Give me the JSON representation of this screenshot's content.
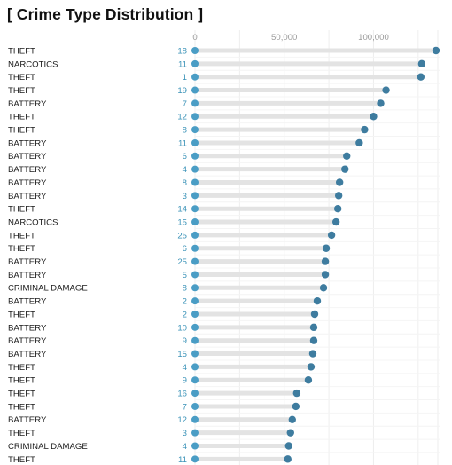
{
  "title": "[ Crime Type Distribution ]",
  "chart_data": {
    "type": "lollipop",
    "title": "[ Crime Type Distribution ]",
    "x_ticks": [
      0,
      50000,
      100000
    ],
    "x_tick_labels": [
      "0",
      "50,000",
      "100,000"
    ],
    "xlim": [
      0,
      137000
    ],
    "grid": true,
    "colors": {
      "stem": "#e3e3e3",
      "start_dot": "#4a9dc5",
      "end_dot": "#3e7c9f",
      "count_text": "#3b93b8",
      "grid": "#eeeeee"
    },
    "rows": [
      {
        "category": "THEFT",
        "count": "18",
        "value": 135000
      },
      {
        "category": "NARCOTICS",
        "count": "11",
        "value": 127000
      },
      {
        "category": "THEFT",
        "count": "1",
        "value": 126500
      },
      {
        "category": "THEFT",
        "count": "19",
        "value": 107000
      },
      {
        "category": "BATTERY",
        "count": "7",
        "value": 104000
      },
      {
        "category": "THEFT",
        "count": "12",
        "value": 100000
      },
      {
        "category": "THEFT",
        "count": "8",
        "value": 95000
      },
      {
        "category": "BATTERY",
        "count": "11",
        "value": 92000
      },
      {
        "category": "BATTERY",
        "count": "6",
        "value": 85000
      },
      {
        "category": "BATTERY",
        "count": "4",
        "value": 84000
      },
      {
        "category": "BATTERY",
        "count": "8",
        "value": 81000
      },
      {
        "category": "BATTERY",
        "count": "3",
        "value": 80500
      },
      {
        "category": "THEFT",
        "count": "14",
        "value": 80000
      },
      {
        "category": "NARCOTICS",
        "count": "15",
        "value": 79000
      },
      {
        "category": "THEFT",
        "count": "25",
        "value": 76500
      },
      {
        "category": "THEFT",
        "count": "6",
        "value": 73500
      },
      {
        "category": "BATTERY",
        "count": "25",
        "value": 73000
      },
      {
        "category": "BATTERY",
        "count": "5",
        "value": 73000
      },
      {
        "category": "CRIMINAL DAMAGE",
        "count": "8",
        "value": 72000
      },
      {
        "category": "BATTERY",
        "count": "2",
        "value": 68500
      },
      {
        "category": "THEFT",
        "count": "2",
        "value": 67000
      },
      {
        "category": "BATTERY",
        "count": "10",
        "value": 66500
      },
      {
        "category": "BATTERY",
        "count": "9",
        "value": 66500
      },
      {
        "category": "BATTERY",
        "count": "15",
        "value": 66000
      },
      {
        "category": "THEFT",
        "count": "4",
        "value": 65000
      },
      {
        "category": "THEFT",
        "count": "9",
        "value": 63500
      },
      {
        "category": "THEFT",
        "count": "16",
        "value": 57000
      },
      {
        "category": "THEFT",
        "count": "7",
        "value": 56500
      },
      {
        "category": "BATTERY",
        "count": "12",
        "value": 54500
      },
      {
        "category": "THEFT",
        "count": "3",
        "value": 53500
      },
      {
        "category": "CRIMINAL DAMAGE",
        "count": "4",
        "value": 52500
      },
      {
        "category": "THEFT",
        "count": "11",
        "value": 52000
      }
    ]
  }
}
